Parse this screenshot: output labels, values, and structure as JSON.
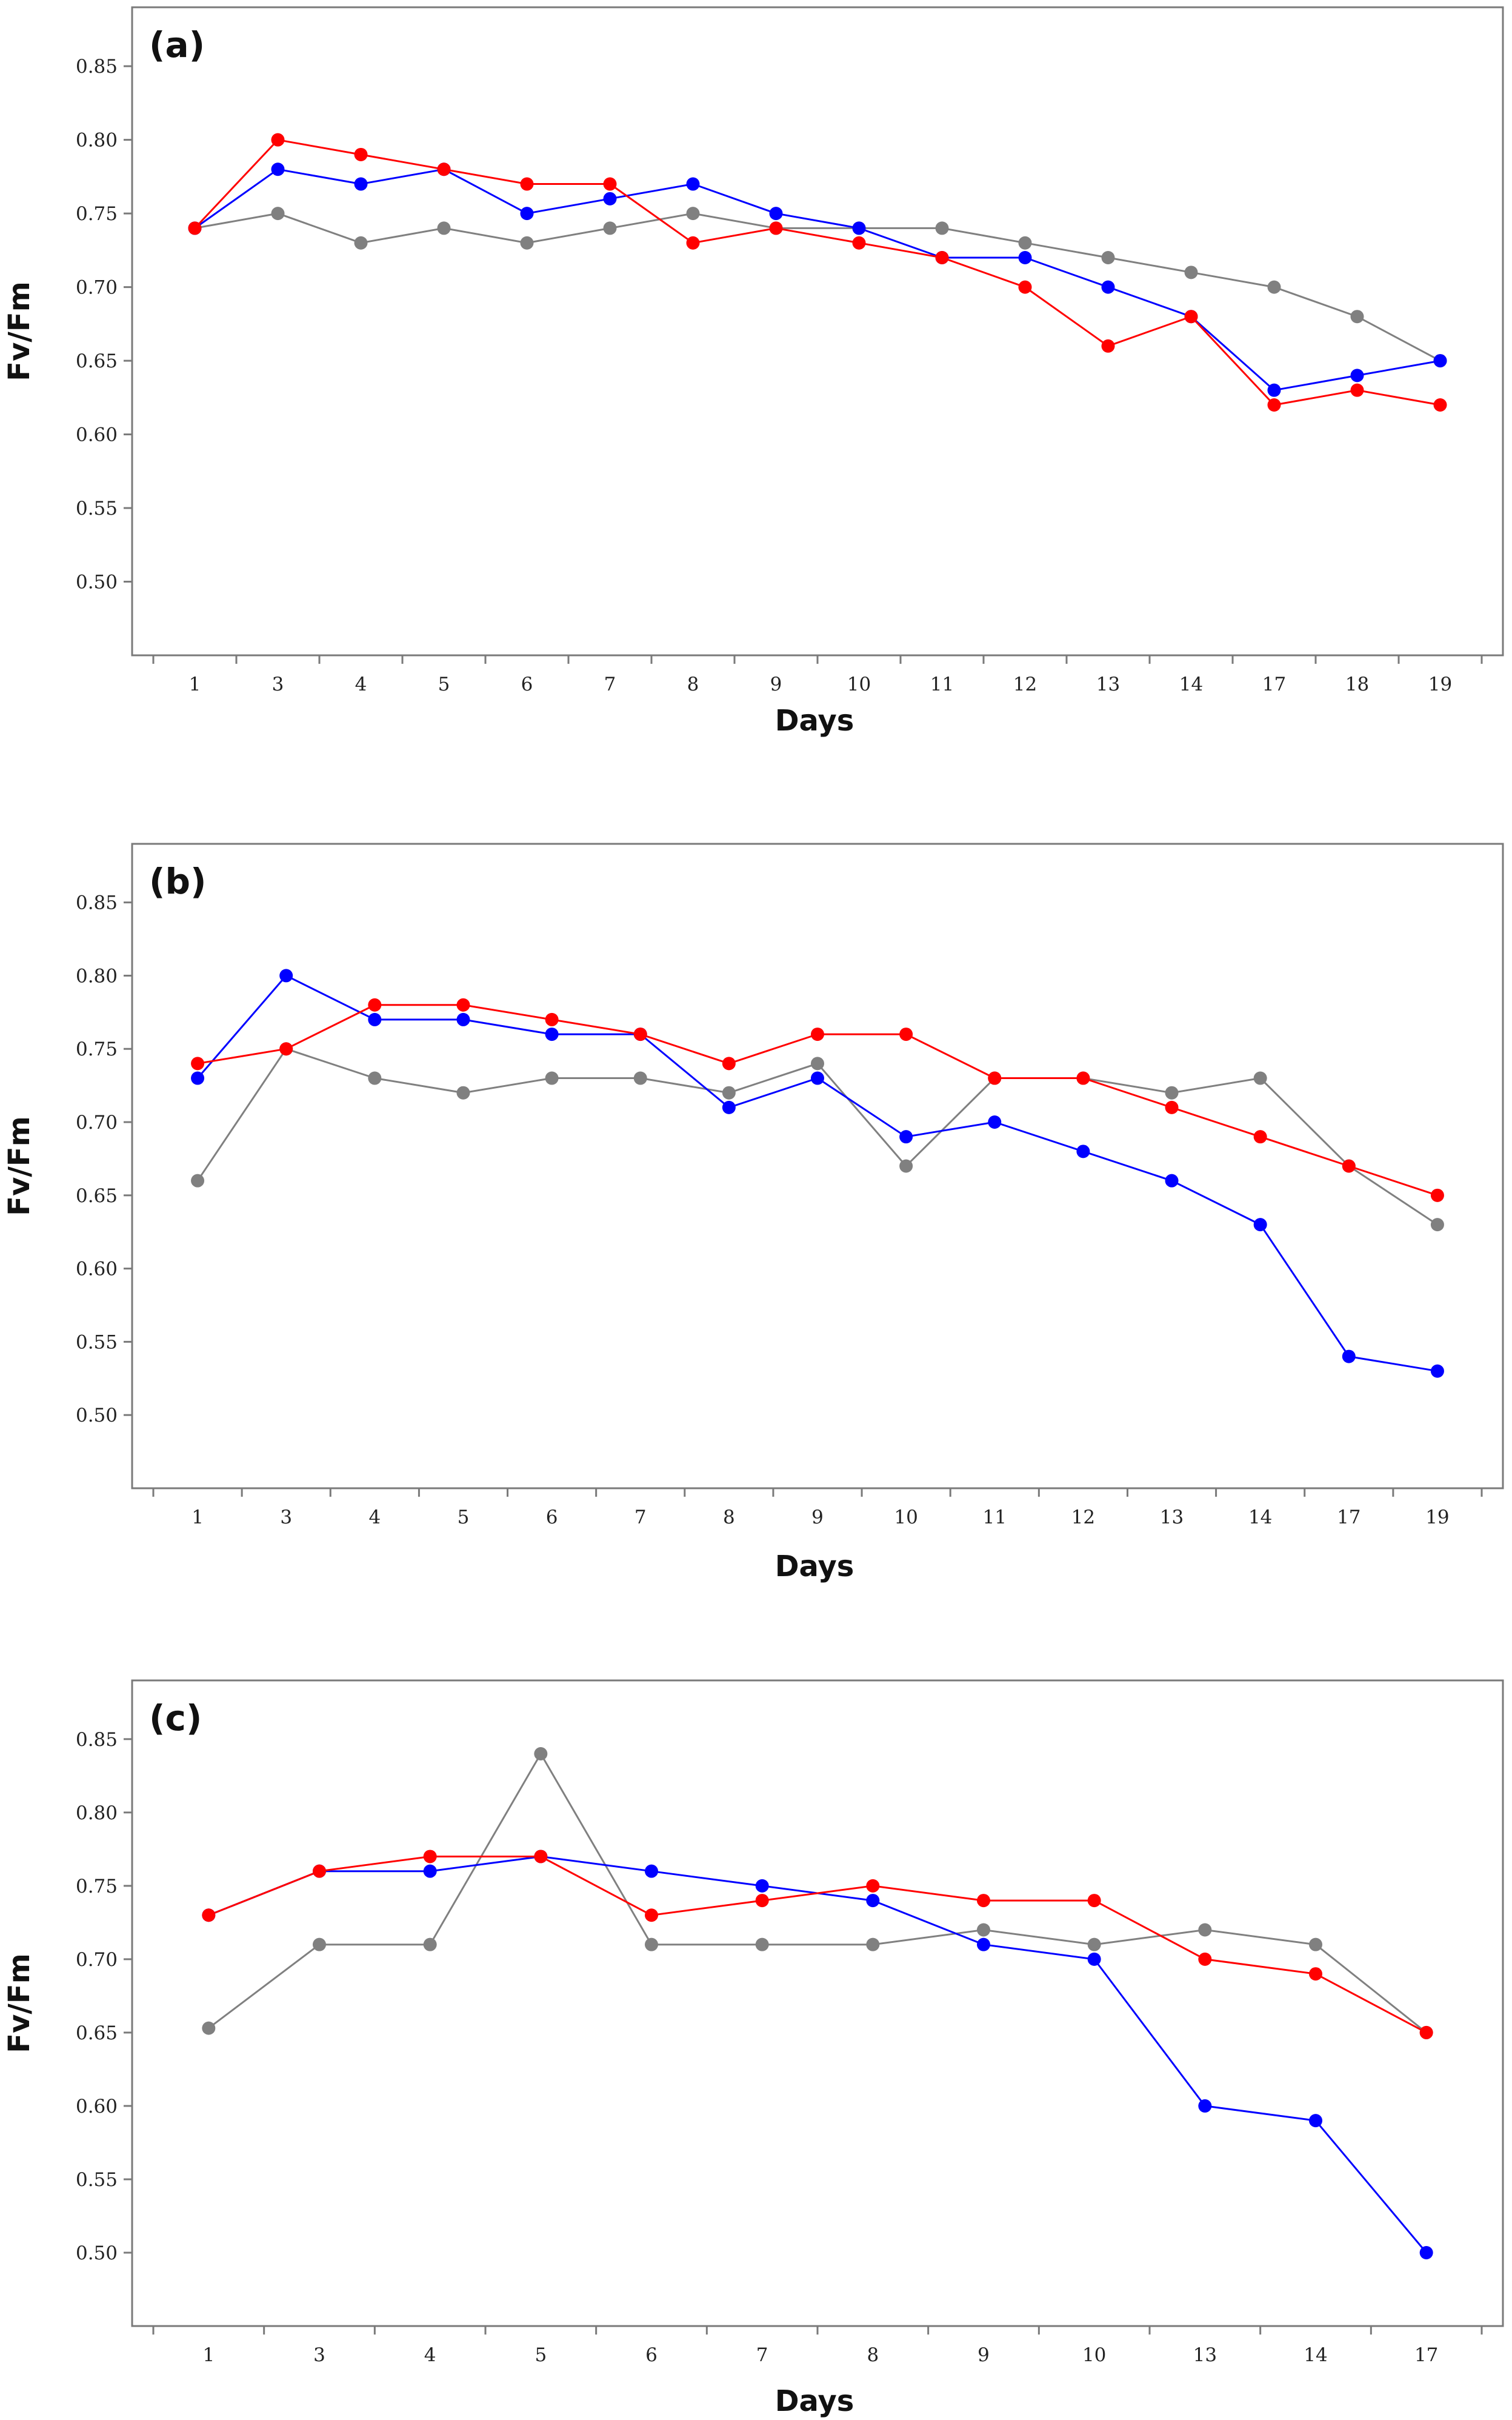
{
  "colors": {
    "red": "#ff0000",
    "blue": "#0000ff",
    "gray": "#808080"
  },
  "chart_data": [
    {
      "type": "line",
      "panel_label": "(a)",
      "xlabel": "Days",
      "ylabel": "Fv/Fm",
      "categories": [
        "1",
        "3",
        "4",
        "5",
        "6",
        "7",
        "8",
        "9",
        "10",
        "11",
        "12",
        "13",
        "14",
        "17",
        "18",
        "19"
      ],
      "ylim": [
        0.45,
        0.89
      ],
      "yticks": [
        "0.50",
        "0.55",
        "0.60",
        "0.65",
        "0.70",
        "0.75",
        "0.80",
        "0.85"
      ],
      "grid": false,
      "series": [
        {
          "name": "red",
          "color": "#ff0000",
          "values": [
            0.74,
            0.8,
            0.79,
            0.78,
            0.77,
            0.77,
            0.73,
            0.74,
            0.73,
            0.72,
            0.7,
            0.66,
            0.68,
            0.62,
            0.63,
            0.62
          ]
        },
        {
          "name": "blue",
          "color": "#0000ff",
          "values": [
            0.74,
            0.78,
            0.77,
            0.78,
            0.75,
            0.76,
            0.77,
            0.75,
            0.74,
            0.72,
            0.72,
            0.7,
            0.68,
            0.63,
            0.64,
            0.65
          ]
        },
        {
          "name": "gray",
          "color": "#808080",
          "values": [
            0.74,
            0.75,
            0.73,
            0.74,
            0.73,
            0.74,
            0.75,
            0.74,
            0.74,
            0.74,
            0.73,
            0.72,
            0.71,
            0.7,
            0.68,
            0.65
          ]
        }
      ]
    },
    {
      "type": "line",
      "panel_label": "(b)",
      "xlabel": "Days",
      "ylabel": "Fv/Fm",
      "categories": [
        "1",
        "3",
        "4",
        "5",
        "6",
        "7",
        "8",
        "9",
        "10",
        "11",
        "12",
        "13",
        "14",
        "17",
        "19"
      ],
      "ylim": [
        0.45,
        0.89
      ],
      "yticks": [
        "0.50",
        "0.55",
        "0.60",
        "0.65",
        "0.70",
        "0.75",
        "0.80",
        "0.85"
      ],
      "grid": false,
      "series": [
        {
          "name": "red",
          "color": "#ff0000",
          "values": [
            0.74,
            0.75,
            0.78,
            0.78,
            0.77,
            0.76,
            0.74,
            0.76,
            0.76,
            0.73,
            0.73,
            0.71,
            0.69,
            0.67,
            0.65
          ]
        },
        {
          "name": "blue",
          "color": "#0000ff",
          "values": [
            0.73,
            0.8,
            0.77,
            0.77,
            0.76,
            0.76,
            0.71,
            0.73,
            0.69,
            0.7,
            0.68,
            0.66,
            0.63,
            0.54,
            0.53
          ]
        },
        {
          "name": "gray",
          "color": "#808080",
          "values": [
            0.66,
            0.75,
            0.73,
            0.72,
            0.73,
            0.73,
            0.72,
            0.74,
            0.67,
            0.73,
            0.73,
            0.72,
            0.73,
            0.67,
            0.63
          ]
        }
      ]
    },
    {
      "type": "line",
      "panel_label": "(c)",
      "xlabel": "Days",
      "ylabel": "Fv/Fm",
      "categories": [
        "1",
        "3",
        "4",
        "5",
        "6",
        "7",
        "8",
        "9",
        "10",
        "13",
        "14",
        "17"
      ],
      "ylim": [
        0.45,
        0.89
      ],
      "yticks": [
        "0.50",
        "0.55",
        "0.60",
        "0.65",
        "0.70",
        "0.75",
        "0.80",
        "0.85"
      ],
      "grid": false,
      "series": [
        {
          "name": "red",
          "color": "#ff0000",
          "values": [
            0.73,
            0.76,
            0.77,
            0.77,
            0.73,
            0.74,
            0.75,
            0.74,
            0.74,
            0.7,
            0.69,
            0.65
          ]
        },
        {
          "name": "blue",
          "color": "#0000ff",
          "values": [
            0.73,
            0.76,
            0.76,
            0.77,
            0.76,
            0.75,
            0.74,
            0.71,
            0.7,
            0.6,
            0.59,
            0.5
          ]
        },
        {
          "name": "gray",
          "color": "#808080",
          "values": [
            0.653,
            0.71,
            0.71,
            0.84,
            0.71,
            0.71,
            0.71,
            0.72,
            0.71,
            0.72,
            0.71,
            0.65
          ]
        }
      ]
    }
  ]
}
